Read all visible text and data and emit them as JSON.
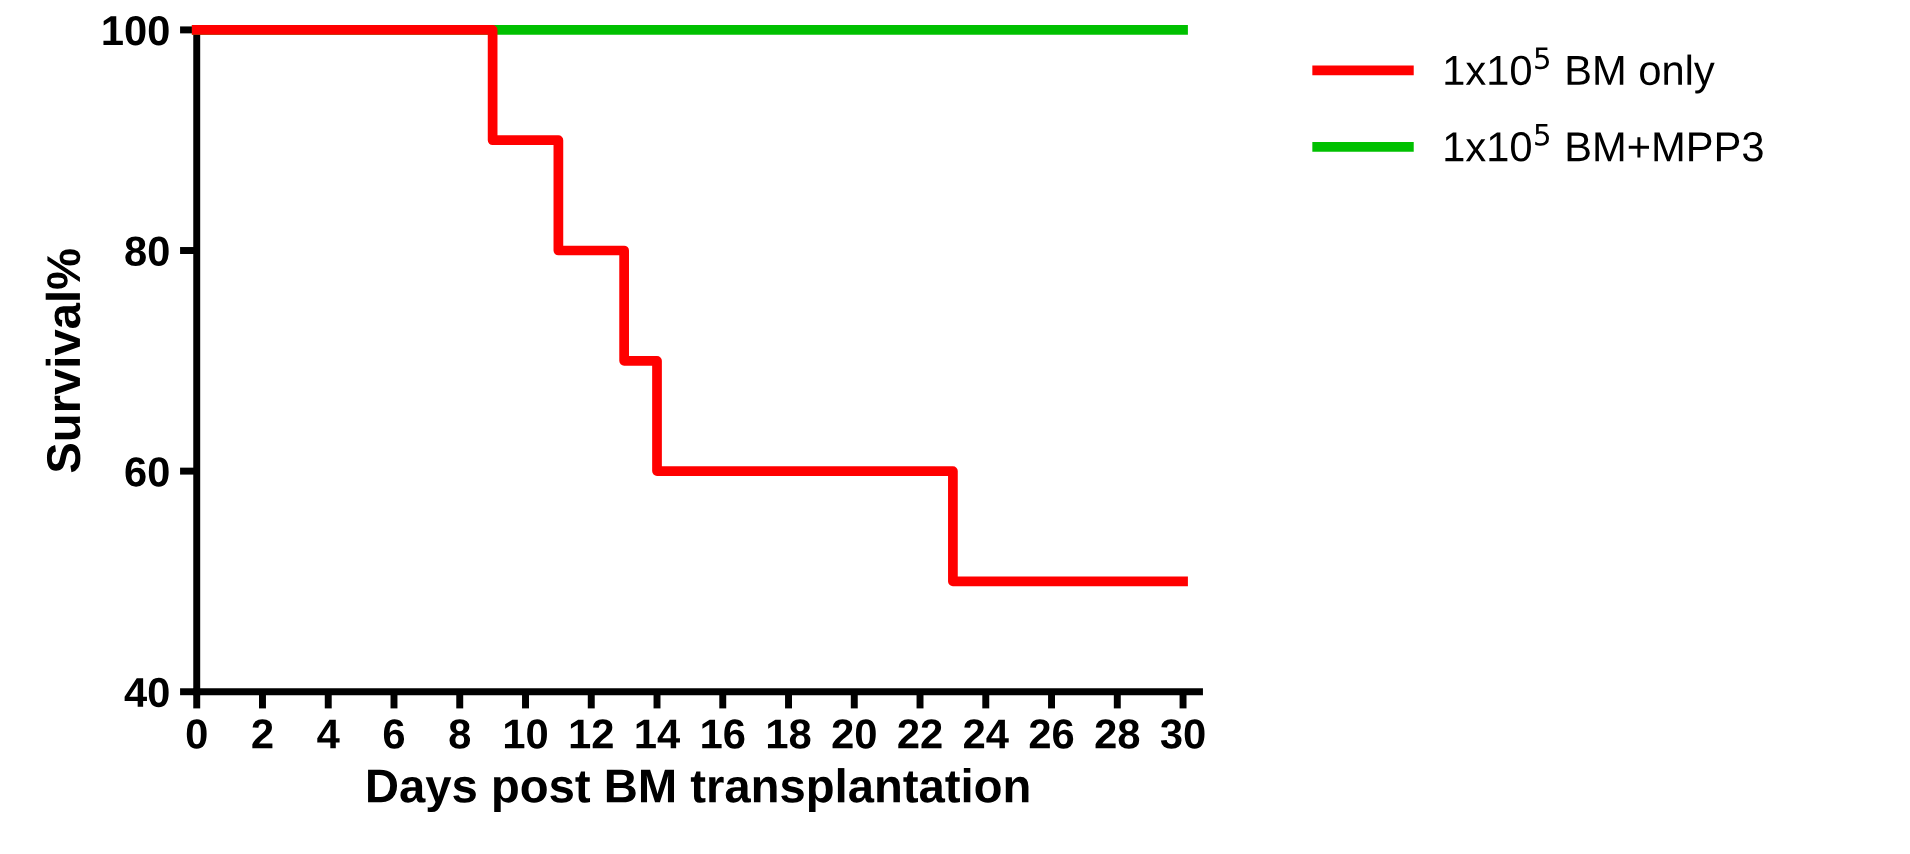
{
  "chart_data": {
    "type": "step",
    "xlabel": "Days post BM transplantation",
    "ylabel": "Survival%",
    "series": [
      {
        "name": "1x10$^{5}$ BM only",
        "color": "#ff0000",
        "x": [
          0,
          9,
          11,
          13,
          14,
          23,
          30
        ],
        "values": [
          100,
          90,
          80,
          70,
          60,
          50,
          50
        ]
      },
      {
        "name": "1x10$^{5}$ BM+MPP3",
        "color": "#00c000",
        "x": [
          0,
          30
        ],
        "values": [
          100,
          100
        ]
      }
    ],
    "xlim": [
      0,
      30.5
    ],
    "xticks": [
      0,
      2,
      4,
      6,
      8,
      10,
      12,
      14,
      16,
      18,
      20,
      22,
      24,
      26,
      28,
      30
    ],
    "ylim": [
      40,
      100
    ],
    "yticks": [
      40,
      60,
      80,
      100
    ],
    "grid": false,
    "legend": "right",
    "line_style": "solid",
    "marker": "none"
  }
}
